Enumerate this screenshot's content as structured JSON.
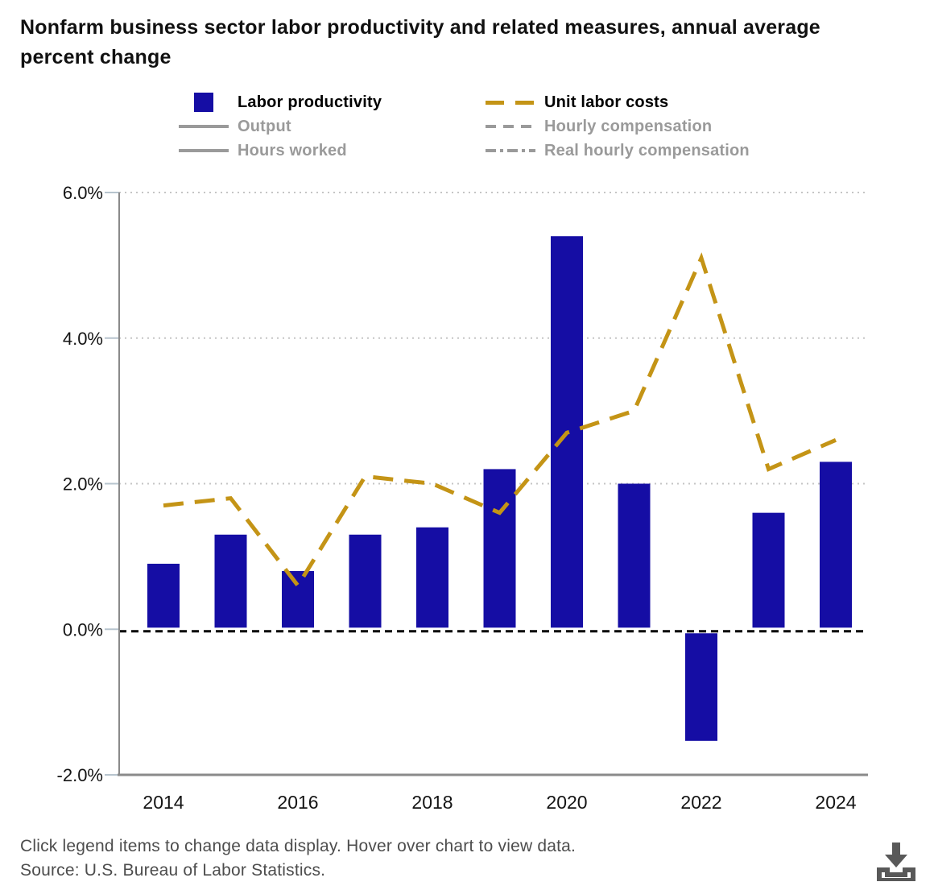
{
  "title": "Nonfarm business sector labor productivity and related measures, annual average percent change",
  "legend": {
    "columns": [
      {
        "items": [
          {
            "label": "Labor productivity",
            "swatch": "square",
            "active": true
          },
          {
            "label": "Output",
            "swatch": "solid-line",
            "active": false
          },
          {
            "label": "Hours worked",
            "swatch": "solid-line",
            "active": false
          }
        ]
      },
      {
        "items": [
          {
            "label": "Unit labor costs",
            "swatch": "gold-long-dash",
            "active": true
          },
          {
            "label": "Hourly compensation",
            "swatch": "gray-short-dash",
            "active": false
          },
          {
            "label": "Real hourly compensation",
            "swatch": "gray-dash-dot",
            "active": false
          }
        ]
      }
    ]
  },
  "chart_data": {
    "type": "bar",
    "categories": [
      "2014",
      "2015",
      "2016",
      "2017",
      "2018",
      "2019",
      "2020",
      "2021",
      "2022",
      "2023",
      "2024"
    ],
    "series": [
      {
        "name": "Labor productivity",
        "type": "bar",
        "color": "#150da4",
        "values": [
          0.9,
          1.3,
          0.8,
          1.3,
          1.4,
          2.2,
          5.4,
          2.0,
          -1.5,
          1.6,
          2.3
        ]
      },
      {
        "name": "Unit labor costs",
        "type": "line",
        "style": "long-dash",
        "color": "#c49416",
        "values": [
          1.7,
          1.8,
          0.6,
          2.1,
          2.0,
          1.6,
          2.7,
          3.0,
          5.1,
          2.2,
          2.6
        ]
      }
    ],
    "hidden_series": [
      "Output",
      "Hours worked",
      "Hourly compensation",
      "Real hourly compensation"
    ],
    "title": "Nonfarm business sector labor productivity and related measures, annual average percent change",
    "xlabel": "",
    "ylabel": "",
    "ylim": [
      -2,
      6
    ],
    "y_ticks": [
      {
        "value": 6,
        "label": "6.0%"
      },
      {
        "value": 4,
        "label": "4.0%"
      },
      {
        "value": 2,
        "label": "2.0%"
      },
      {
        "value": 0,
        "label": "0.0%"
      },
      {
        "value": -2,
        "label": "-2.0%"
      }
    ],
    "x_tick_labels": [
      "2014",
      "2016",
      "2018",
      "2020",
      "2022",
      "2024"
    ],
    "grid": "dotted horizontal gridlines",
    "zero_line": "black dashed",
    "legend_position": "top"
  },
  "colors": {
    "bar_blue": "#150da4",
    "line_gold": "#c49416",
    "inactive_gray": "#9a9a9a",
    "axis_gray": "#8a8a8a",
    "grid_gray": "#c5c5c5",
    "tick_bluegray": "#b7c4ce",
    "footer_gray": "#4d4d4d",
    "icon_gray": "#595959"
  },
  "footer": {
    "note": "Click legend items to change data display. Hover over chart to view data.",
    "source": "Source: U.S. Bureau of Labor Statistics."
  }
}
